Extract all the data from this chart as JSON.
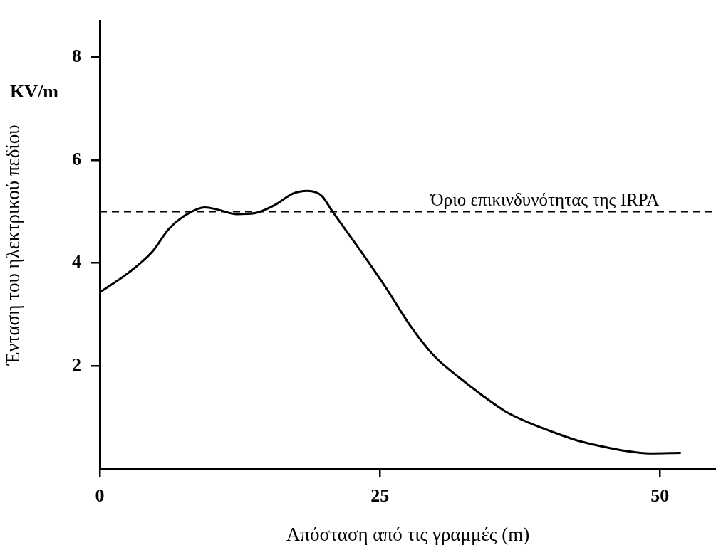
{
  "chart_data": {
    "type": "line",
    "xlabel": "Απόσταση από τις γραμμές (m)",
    "ylabel": "Ένταση του ηλεκτρικού πεδίου",
    "annotations": [
      "KV/m"
    ],
    "x": [
      0,
      2.56,
      4.69,
      6.19,
      7.89,
      9.38,
      10.66,
      12.16,
      13.86,
      15.57,
      17.27,
      18.55,
      19.83,
      20.68,
      23.46,
      25.6,
      27.72,
      29.86,
      32.0,
      34.13,
      36.26,
      38.39,
      40.52,
      42.65,
      44.78,
      46.92,
      49.05,
      51.8
    ],
    "series": [
      {
        "color": "#000000",
        "values": [
          3.43,
          3.81,
          4.22,
          4.67,
          4.96,
          5.08,
          5.03,
          4.95,
          4.97,
          5.12,
          5.35,
          5.4,
          5.3,
          5.03,
          4.18,
          3.5,
          2.78,
          2.19,
          1.79,
          1.43,
          1.11,
          0.89,
          0.71,
          0.55,
          0.44,
          0.35,
          0.3,
          0.31
        ]
      }
    ],
    "xlim": [
      0,
      55
    ],
    "ylim": [
      0,
      8.7
    ],
    "xticks": [
      0,
      25,
      50
    ],
    "yticks": [
      2,
      4,
      6,
      8
    ],
    "grid": false,
    "legend": false,
    "marker": "none",
    "line_style": "solid",
    "ref_lines": [
      {
        "axis": "y",
        "value": 5,
        "label": "Όριο επικινδυνότητας της IRPA",
        "color": "#000000",
        "line_style": "dashed"
      }
    ]
  }
}
